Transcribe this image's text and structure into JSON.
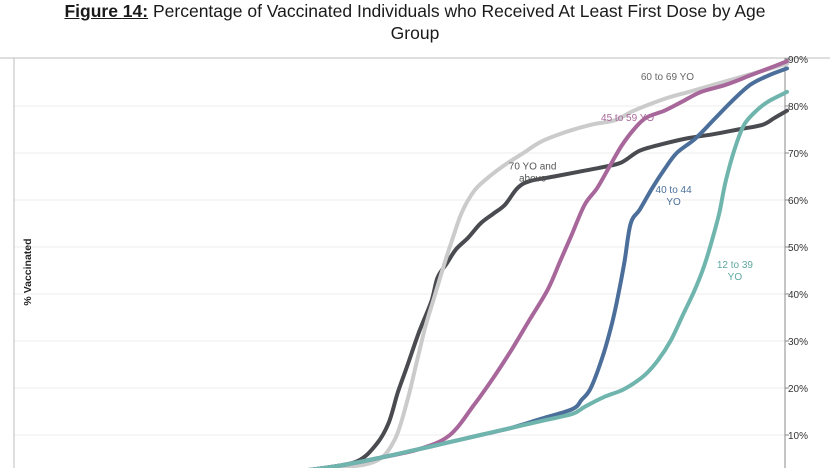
{
  "figure": {
    "label": "Figure 14:",
    "title_line1": "Percentage of Vaccinated Individuals who Received At Least First Dose by Age",
    "title_line2": "Group"
  },
  "chart_data": {
    "type": "line",
    "title": "Percentage of Vaccinated Individuals who Received At Least First Dose by Age Group",
    "ylabel": "% Vaccinated",
    "xlabel": "",
    "xlim": [
      0,
      100
    ],
    "ylim": [
      0,
      90
    ],
    "y_ticks": [
      {
        "value": 10,
        "label": "10%"
      },
      {
        "value": 20,
        "label": "20%"
      },
      {
        "value": 30,
        "label": "30%"
      },
      {
        "value": 40,
        "label": "40%"
      },
      {
        "value": 50,
        "label": "50%"
      },
      {
        "value": 60,
        "label": "60%"
      },
      {
        "value": 70,
        "label": "70%"
      },
      {
        "value": 80,
        "label": "80%"
      },
      {
        "value": 90,
        "label": "90%"
      }
    ],
    "grid": true,
    "y_axis_side": "right",
    "series": [
      {
        "name": "70 YO and above",
        "label_lines": [
          "70 YO and",
          "above"
        ],
        "color": "#4a4b50",
        "label_color": "#555555",
        "label_at": [
          58.5,
          66.5
        ],
        "x": [
          0,
          3,
          4.5,
          7,
          12,
          20,
          25,
          30,
          33,
          35,
          36.5,
          38,
          40,
          42,
          43,
          44.5,
          46,
          48,
          50,
          52,
          54,
          56,
          58,
          62,
          66,
          70,
          73,
          76,
          80,
          84,
          88,
          92,
          96,
          98,
          100
        ],
        "values": [
          0,
          0,
          0.8,
          1.5,
          1.8,
          2.2,
          3,
          4.5,
          8,
          12.5,
          19,
          24.5,
          32,
          38.5,
          43.5,
          46.5,
          49.5,
          52,
          55,
          57,
          59,
          62.5,
          64,
          65,
          66,
          67,
          68,
          70.5,
          72,
          73.2,
          74,
          75,
          76,
          77.5,
          79
        ]
      },
      {
        "name": "60 to 69 YO",
        "label_lines": [
          "60 to 69 YO"
        ],
        "color": "#cbcbcb",
        "label_color": "#666666",
        "label_at": [
          80.5,
          85.5
        ],
        "x": [
          0,
          3,
          4.5,
          7,
          12,
          20,
          27,
          33,
          36,
          38,
          39.5,
          41,
          42.5,
          44,
          45.5,
          47,
          49,
          51,
          54,
          57,
          60,
          64,
          68,
          72,
          75,
          80,
          84,
          88,
          92,
          96,
          100
        ],
        "values": [
          0,
          0,
          0.8,
          1.5,
          1.8,
          2.2,
          3,
          4.5,
          9,
          17,
          25,
          33,
          39.5,
          46,
          52,
          57.5,
          62,
          64.5,
          67.5,
          70,
          72.5,
          74.5,
          76,
          77,
          79,
          81.5,
          83,
          84.5,
          86,
          87.5,
          89
        ]
      },
      {
        "name": "45 to 59 YO",
        "label_lines": [
          "45 to 59 YO"
        ],
        "color": "#a8679b",
        "label_color": "#a8679b",
        "label_at": [
          74,
          76.8
        ],
        "x": [
          0,
          3,
          4.5,
          7,
          12,
          20,
          27,
          33,
          40,
          45,
          49,
          52,
          55,
          58,
          61,
          63,
          65,
          67,
          69,
          71,
          73,
          75,
          77,
          80,
          83,
          86,
          90,
          94,
          98,
          100
        ],
        "values": [
          0,
          0,
          0.8,
          1.5,
          1.8,
          2.3,
          3.5,
          5,
          7,
          10,
          16.5,
          22,
          28,
          34.5,
          41,
          47,
          53,
          59,
          62.5,
          67,
          71.5,
          75,
          77.5,
          79,
          81,
          83,
          84.5,
          86.5,
          88.5,
          89.5
        ]
      },
      {
        "name": "40 to 44 YO",
        "label_lines": [
          "40 to 44",
          "YO"
        ],
        "color": "#4b6f9a",
        "label_color": "#4b6f9a",
        "label_at": [
          81.5,
          61.5
        ],
        "x": [
          0,
          3,
          4.5,
          7,
          12,
          20,
          27,
          33,
          40,
          45,
          50,
          55,
          60,
          65,
          66.5,
          68,
          70,
          71.5,
          72.5,
          73.5,
          74.5,
          76,
          78,
          80,
          82,
          85,
          88,
          91,
          94,
          97,
          100
        ],
        "values": [
          0,
          0,
          0.8,
          1.5,
          1.8,
          2.3,
          3.5,
          5,
          7,
          8.5,
          10,
          11.5,
          13.5,
          15.5,
          17.5,
          20,
          27,
          34,
          40,
          47,
          55,
          58,
          62.5,
          66.5,
          70,
          73,
          77,
          81,
          84.5,
          86.5,
          88
        ]
      },
      {
        "name": "12 to 39 YO",
        "label_lines": [
          "12 to 39",
          "YO"
        ],
        "color": "#6fb5ad",
        "label_color": "#5fa8a0",
        "label_at": [
          91.5,
          45.5
        ],
        "x": [
          0,
          3,
          4.5,
          7,
          12,
          20,
          27,
          33,
          40,
          45,
          50,
          55,
          60,
          65,
          67,
          70,
          73,
          75,
          77,
          79,
          81,
          83,
          85,
          86.5,
          88,
          89,
          90,
          91.5,
          93,
          95,
          97,
          100
        ],
        "values": [
          0,
          0,
          0.8,
          1.5,
          1.8,
          2.3,
          3.5,
          5,
          7,
          8.5,
          10,
          11.5,
          13,
          14.5,
          16,
          18,
          19.5,
          21,
          23,
          26,
          30,
          35.5,
          41,
          46,
          52.5,
          57.5,
          64,
          71,
          76,
          79,
          81,
          83
        ]
      }
    ]
  }
}
